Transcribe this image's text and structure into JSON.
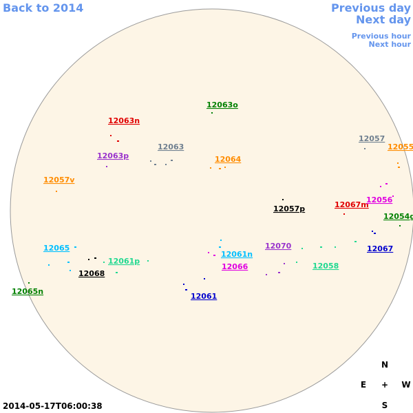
{
  "navigation": {
    "back": "Back to 2014",
    "previous_day": "Previous day",
    "next_day": "Next day",
    "previous_hour": "Previous hour",
    "next_hour": "Next hour"
  },
  "regions": [
    {
      "label": "12063o",
      "color": "#008000"
    },
    {
      "label": "12063n",
      "color": "#e00000"
    },
    {
      "label": "12063",
      "color": "#708090"
    },
    {
      "label": "12063p",
      "color": "#9932cc"
    },
    {
      "label": "12064",
      "color": "#ff8c00"
    },
    {
      "label": "12057",
      "color": "#708090"
    },
    {
      "label": "12055",
      "color": "#ff8c00"
    },
    {
      "label": "12057v",
      "color": "#ff8c00"
    },
    {
      "label": "12057p",
      "color": "#000000"
    },
    {
      "label": "12067m",
      "color": "#e00000"
    },
    {
      "label": "12056",
      "color": "#e000e0"
    },
    {
      "label": "12054g",
      "color": "#008000"
    },
    {
      "label": "12070",
      "color": "#9932cc"
    },
    {
      "label": "12067",
      "color": "#0000cd"
    },
    {
      "label": "12065",
      "color": "#00bfff"
    },
    {
      "label": "12061n",
      "color": "#00bfff"
    },
    {
      "label": "12061p",
      "color": "#20d890"
    },
    {
      "label": "12058",
      "color": "#20d890"
    },
    {
      "label": "12066",
      "color": "#e000e0"
    },
    {
      "label": "12068",
      "color": "#000000"
    },
    {
      "label": "12065n",
      "color": "#008000"
    },
    {
      "label": "12061",
      "color": "#0000cd"
    }
  ],
  "compass": {
    "north": "N",
    "east": "E",
    "center": "+",
    "west": "W",
    "south": "S"
  },
  "timestamp": "2014-05-17T06:00:38"
}
